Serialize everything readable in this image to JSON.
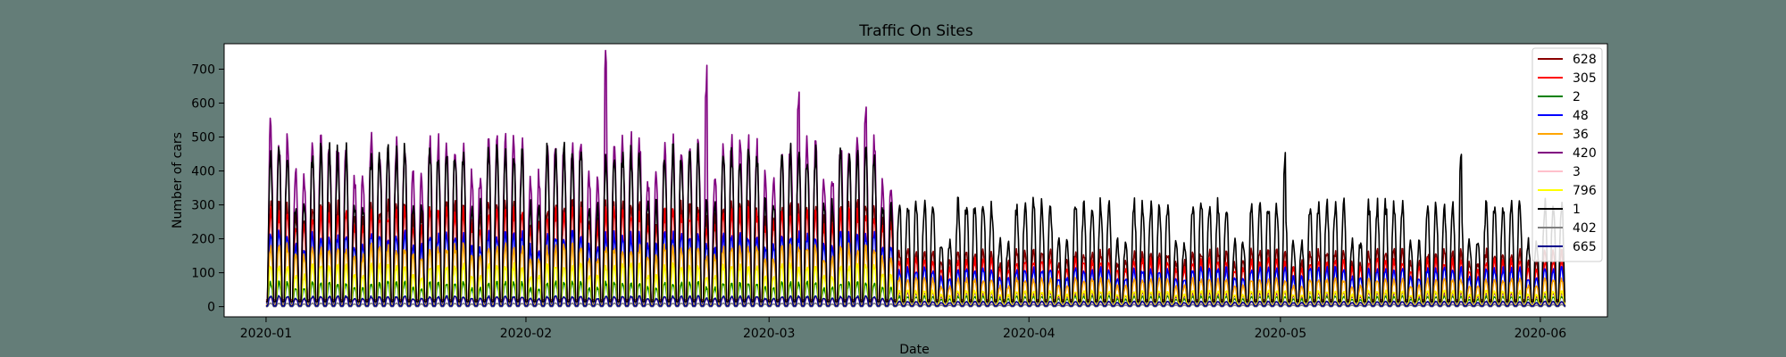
{
  "page": {
    "background": "#647d78"
  },
  "chart_data": {
    "type": "line",
    "title": "Traffic On Sites",
    "xlabel": "Date",
    "ylabel": "Number of cars",
    "x_range": [
      "2019-12-27",
      "2020-06-09"
    ],
    "x_ticks": [
      {
        "date": "2020-01-01",
        "label": "2020-01"
      },
      {
        "date": "2020-02-01",
        "label": "2020-02"
      },
      {
        "date": "2020-03-01",
        "label": "2020-03"
      },
      {
        "date": "2020-04-01",
        "label": "2020-04"
      },
      {
        "date": "2020-05-01",
        "label": "2020-05"
      },
      {
        "date": "2020-06-01",
        "label": "2020-06"
      }
    ],
    "ylim": [
      -30,
      775
    ],
    "y_ticks": [
      0,
      100,
      200,
      300,
      400,
      500,
      600,
      700
    ],
    "grid": false,
    "legend_position": "top-right",
    "data_interval": "hourly",
    "date_range": [
      "2020-01-01",
      "2020-06-04"
    ],
    "regime_change_date": "2020-03-16",
    "series": [
      {
        "name": "628",
        "color": "#8b0000",
        "weekday_peak_before": 295,
        "weekend_peak_before": 260,
        "weekday_peak_after": 160,
        "weekend_peak_after": 130,
        "night_min": 20
      },
      {
        "name": "305",
        "color": "#ff0000",
        "weekday_peak_before": 275,
        "weekend_peak_before": 240,
        "weekday_peak_after": 135,
        "weekend_peak_after": 110,
        "night_min": 15
      },
      {
        "name": "2",
        "color": "#008000",
        "weekday_peak_before": 70,
        "weekend_peak_before": 55,
        "weekday_peak_after": 30,
        "weekend_peak_after": 22,
        "night_min": 2
      },
      {
        "name": "48",
        "color": "#0000ff",
        "weekday_peak_before": 210,
        "weekend_peak_before": 175,
        "weekday_peak_after": 110,
        "weekend_peak_after": 85,
        "night_min": 10
      },
      {
        "name": "36",
        "color": "#ffa500",
        "weekday_peak_before": 175,
        "weekend_peak_before": 145,
        "weekday_peak_after": 80,
        "weekend_peak_after": 60,
        "night_min": 5
      },
      {
        "name": "420",
        "color": "#800080",
        "weekday_peak_before": 480,
        "weekend_peak_before": 380,
        "weekday_peak_after": 40,
        "weekend_peak_after": 30,
        "night_min": 3
      },
      {
        "name": "3",
        "color": "#ffc0cb",
        "weekday_peak_before": 25,
        "weekend_peak_before": 20,
        "weekday_peak_after": 12,
        "weekend_peak_after": 9,
        "night_min": 1
      },
      {
        "name": "796",
        "color": "#ffff00",
        "weekday_peak_before": 120,
        "weekend_peak_before": 90,
        "weekday_peak_after": 45,
        "weekend_peak_after": 35,
        "night_min": 3
      },
      {
        "name": "1",
        "color": "#000000",
        "weekday_peak_before": 450,
        "weekend_peak_before": 300,
        "weekday_peak_after": 300,
        "weekend_peak_after": 190,
        "night_min": 15
      },
      {
        "name": "402",
        "color": "#808080",
        "weekday_peak_before": 10,
        "weekend_peak_before": 8,
        "weekday_peak_after": 6,
        "weekend_peak_after": 4,
        "night_min": 0
      },
      {
        "name": "665",
        "color": "#00008b",
        "weekday_peak_before": 30,
        "weekend_peak_before": 24,
        "weekday_peak_after": 15,
        "weekend_peak_after": 12,
        "night_min": 2
      }
    ],
    "notable_spikes": [
      {
        "series": "420",
        "date": "2020-01-01",
        "value": 575
      },
      {
        "series": "420",
        "date": "2020-02-10",
        "value": 735
      },
      {
        "series": "420",
        "date": "2020-02-22",
        "value": 670
      },
      {
        "series": "420",
        "date": "2020-03-04",
        "value": 640
      },
      {
        "series": "420",
        "date": "2020-03-12",
        "value": 595
      },
      {
        "series": "1",
        "date": "2020-05-01",
        "value": 430
      },
      {
        "series": "1",
        "date": "2020-05-22",
        "value": 420
      }
    ]
  }
}
